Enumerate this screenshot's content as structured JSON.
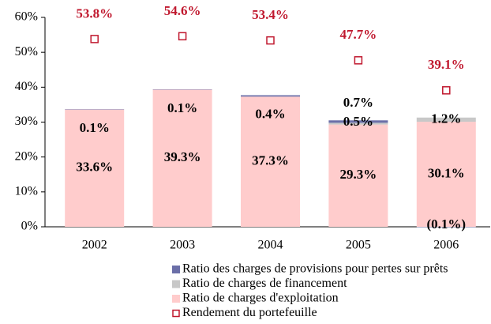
{
  "chart_data": {
    "type": "bar",
    "categories": [
      "2002",
      "2003",
      "2004",
      "2005",
      "2006"
    ],
    "ylim": [
      0,
      60
    ],
    "yticks": [
      {
        "value": 0,
        "label": "0%"
      },
      {
        "value": 10,
        "label": "10%"
      },
      {
        "value": 20,
        "label": "20%"
      },
      {
        "value": 30,
        "label": "30%"
      },
      {
        "value": 40,
        "label": "40%"
      },
      {
        "value": 50,
        "label": "50%"
      },
      {
        "value": 60,
        "label": "60%"
      }
    ],
    "series": [
      {
        "name": "Ratio des charges de provisions pour pertes sur prêts",
        "color": "#6b6fa8",
        "values": [
          0.1,
          0.1,
          0.4,
          0.7,
          -0.1
        ],
        "value_labels": [
          "0.1%",
          "0.1%",
          "0.4%",
          "0.7%",
          "(0.1%)"
        ]
      },
      {
        "name": "Ratio de charges de financement",
        "color": "#c8c8c8",
        "values": [
          null,
          null,
          null,
          0.5,
          1.2
        ],
        "value_labels": [
          null,
          null,
          null,
          "0.5%",
          "1.2%"
        ]
      },
      {
        "name": "Ratio de charges d'exploitation",
        "color": "#ffcccc",
        "values": [
          33.6,
          39.3,
          37.3,
          29.3,
          30.1
        ],
        "value_labels": [
          "33.6%",
          "39.3%",
          "37.3%",
          "29.3%",
          "30.1%"
        ]
      },
      {
        "name": "Rendement du portefeuille",
        "type": "scatter",
        "color": "#c0182e",
        "values": [
          53.8,
          54.6,
          53.4,
          47.7,
          39.1
        ],
        "value_labels": [
          "53.8%",
          "54.6%",
          "53.4%",
          "47.7%",
          "39.1%"
        ]
      }
    ]
  }
}
